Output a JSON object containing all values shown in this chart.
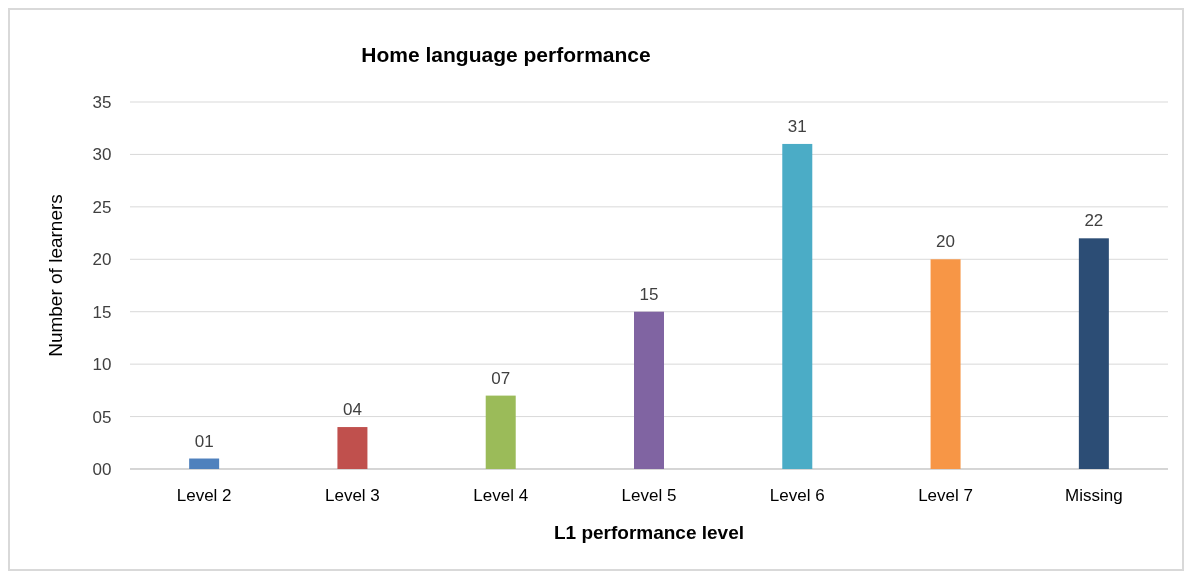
{
  "chart_data": {
    "type": "bar",
    "title": "Home language performance",
    "xlabel": "L1 performance level",
    "ylabel": "Number of learners",
    "categories": [
      "Level 2",
      "Level 3",
      "Level 4",
      "Level 5",
      "Level 6",
      "Level 7",
      "Missing"
    ],
    "values": [
      1,
      4,
      7,
      15,
      31,
      20,
      22
    ],
    "value_labels": [
      "01",
      "04",
      "07",
      "15",
      "31",
      "20",
      "22"
    ],
    "colors": [
      "#4f81bd",
      "#c0504d",
      "#9bbb59",
      "#8064a2",
      "#4bacc6",
      "#f79646",
      "#2c4d75"
    ],
    "ylim": [
      0,
      35
    ],
    "yticks": [
      {
        "value": 0,
        "label": "00"
      },
      {
        "value": 5,
        "label": "05"
      },
      10,
      15,
      20,
      25,
      30,
      35
    ],
    "grid": "y"
  }
}
